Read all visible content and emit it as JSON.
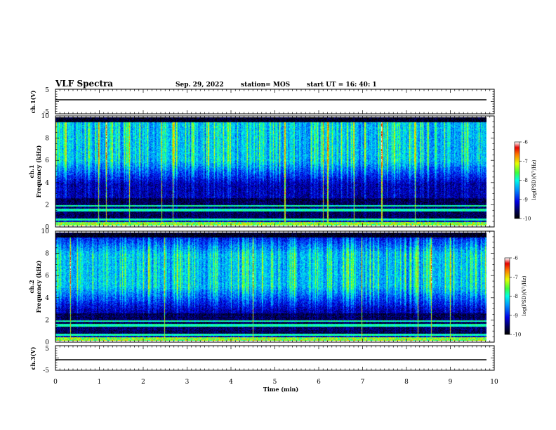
{
  "header": {
    "title": "VLF Spectra",
    "date": "Sep. 29, 2022",
    "station": "station= MOS",
    "start": "start UT =   16: 40: 1"
  },
  "chart_data": [
    {
      "type": "line",
      "name": "ch1_waveform",
      "ylabel": "ch.1(V)",
      "ylim": [
        -5,
        5
      ],
      "yticks": [
        "5",
        "-5"
      ],
      "xlim": [
        0,
        10
      ],
      "x": [
        0,
        10
      ],
      "y": [
        0,
        0
      ]
    },
    {
      "type": "heatmap",
      "name": "ch1_spectrogram",
      "ylabel": "ch.1",
      "ylabel2": "Frequency (kHz)",
      "ylim": [
        0,
        10
      ],
      "yticks": [
        "0",
        "2",
        "4",
        "6",
        "8",
        "10"
      ],
      "xlim": [
        0,
        10
      ],
      "colorbar": {
        "label": "log(PSD)(V²/Hz)",
        "range": [
          -10,
          -6
        ],
        "ticks": [
          "-6",
          "-7",
          "-8",
          "-9",
          "-10"
        ]
      },
      "band_kHz": [
        2.5,
        10
      ],
      "peak_band_kHz": [
        6,
        9.5
      ]
    },
    {
      "type": "heatmap",
      "name": "ch2_spectrogram",
      "ylabel": "ch.2",
      "ylabel2": "Frequency (kHz)",
      "ylim": [
        0,
        10
      ],
      "yticks": [
        "0",
        "2",
        "4",
        "6",
        "8",
        "10"
      ],
      "xlim": [
        0,
        10
      ],
      "colorbar": {
        "label": "log(PSD)(V²/Hz)",
        "range": [
          -10,
          -6
        ],
        "ticks": [
          "-6",
          "-7",
          "-8",
          "-9",
          "-10"
        ]
      },
      "band_kHz": [
        2.5,
        10
      ],
      "peak_band_kHz": [
        5,
        8
      ]
    },
    {
      "type": "line",
      "name": "ch3_waveform",
      "ylabel": "ch.3(V)",
      "ylim": [
        -5,
        5
      ],
      "yticks": [
        "5",
        "-5"
      ],
      "xlim": [
        0,
        10
      ],
      "x": [
        0,
        10
      ],
      "y": [
        0,
        0
      ]
    }
  ],
  "xaxis": {
    "label": "Time (min)",
    "ticks": [
      "0",
      "1",
      "2",
      "3",
      "4",
      "5",
      "6",
      "7",
      "8",
      "9",
      "10"
    ]
  }
}
